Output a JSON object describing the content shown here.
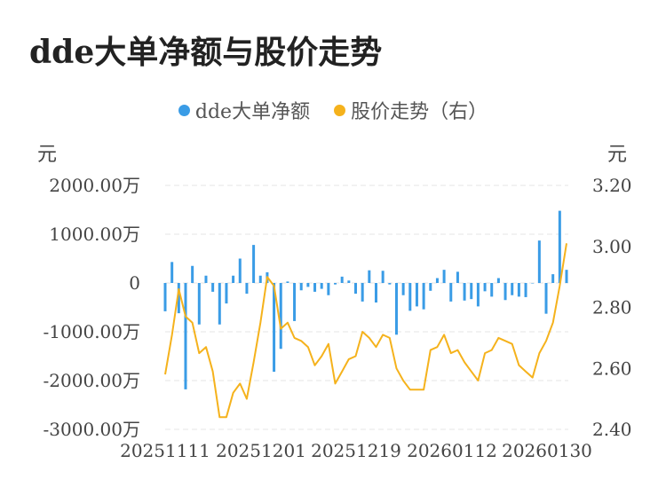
{
  "title": "dde大单净额与股价走势",
  "legend": {
    "series1": "dde大单净额",
    "series2": "股价走势（右）"
  },
  "units": {
    "left": "元",
    "right": "元"
  },
  "colors": {
    "bar": "#3a9ce6",
    "line": "#f5b21c",
    "grid": "#e6e6e6"
  },
  "chart_data": {
    "type": "bar+line",
    "title": "dde大单净额与股价走势",
    "x_ticks": [
      "20251111",
      "20251201",
      "20251219",
      "20260112",
      "20260130"
    ],
    "left_axis": {
      "ticks": [
        "2000.00万",
        "1000.00万",
        "0",
        "-1000.00万",
        "-2000.00万",
        "-3000.00万"
      ],
      "ylim": [
        -3000,
        2000
      ],
      "unit": "万元"
    },
    "right_axis": {
      "ticks": [
        "3.20",
        "3.00",
        "2.80",
        "2.60",
        "2.40"
      ],
      "ylim": [
        2.4,
        3.2
      ]
    },
    "series": [
      {
        "name": "dde大单净额",
        "kind": "bar",
        "axis": "left",
        "values": [
          -580,
          430,
          -620,
          -2180,
          350,
          -850,
          150,
          -180,
          -850,
          -420,
          150,
          500,
          -220,
          780,
          150,
          220,
          -1820,
          -1350,
          30,
          -780,
          -150,
          -80,
          -180,
          -120,
          -250,
          -30,
          130,
          50,
          -220,
          -380,
          260,
          -400,
          250,
          -30,
          -1060,
          -250,
          -570,
          -480,
          -540,
          -160,
          100,
          270,
          -380,
          230,
          -360,
          -330,
          -480,
          -170,
          -280,
          100,
          -350,
          -250,
          -280,
          -290,
          0,
          870,
          -630,
          180,
          1480,
          270
        ]
      },
      {
        "name": "股价走势（右）",
        "kind": "line",
        "axis": "right",
        "values": [
          2.58,
          2.71,
          2.86,
          2.77,
          2.75,
          2.65,
          2.67,
          2.59,
          2.44,
          2.44,
          2.52,
          2.55,
          2.5,
          2.62,
          2.75,
          2.9,
          2.87,
          2.73,
          2.75,
          2.7,
          2.69,
          2.67,
          2.61,
          2.64,
          2.68,
          2.55,
          2.59,
          2.63,
          2.64,
          2.72,
          2.7,
          2.67,
          2.71,
          2.7,
          2.6,
          2.56,
          2.53,
          2.53,
          2.53,
          2.66,
          2.67,
          2.71,
          2.65,
          2.66,
          2.62,
          2.59,
          2.56,
          2.65,
          2.66,
          2.7,
          2.69,
          2.68,
          2.61,
          2.59,
          2.57,
          2.65,
          2.69,
          2.75,
          2.87,
          3.01
        ]
      }
    ]
  }
}
